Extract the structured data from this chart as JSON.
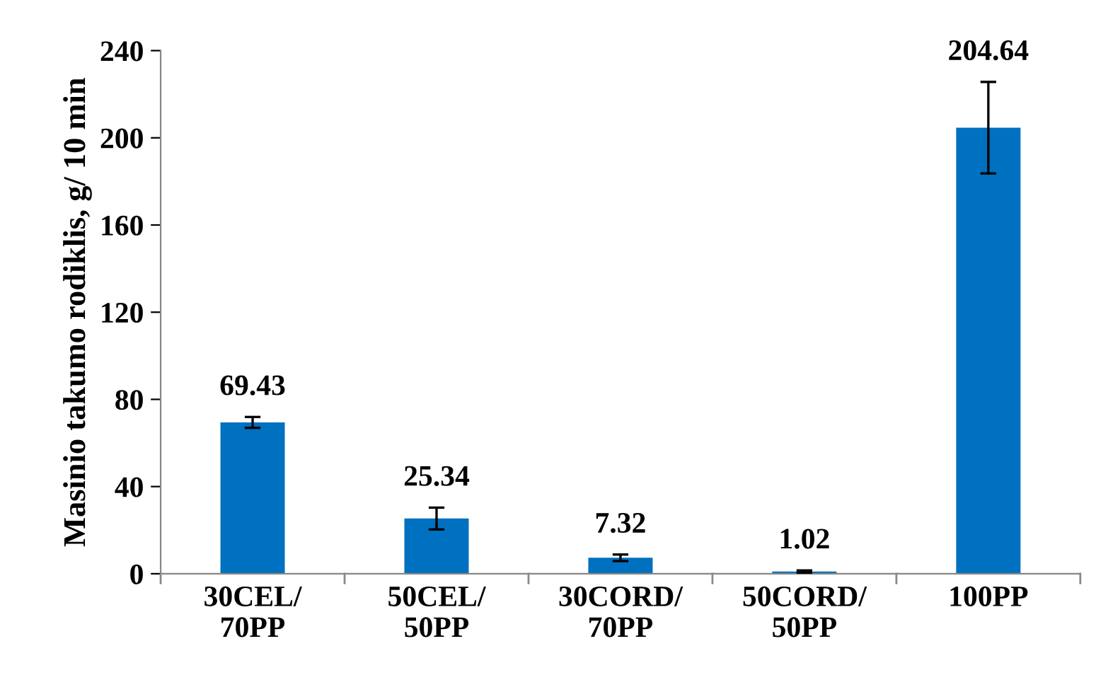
{
  "chart_data": {
    "type": "bar",
    "ylabel": "Masinio takumo rodiklis, g/ 10 min",
    "categories": [
      "30CEL/\n70PP",
      "50CEL/\n50PP",
      "30CORD/\n70PP",
      "50CORD/\n50PP",
      "100PP"
    ],
    "values": [
      69.43,
      25.34,
      7.32,
      1.02,
      204.64
    ],
    "errors": [
      2.5,
      5,
      1.5,
      0.5,
      21
    ],
    "color": "#0070c0",
    "ylim": [
      0,
      240
    ],
    "yticks": [
      0,
      40,
      80,
      120,
      160,
      200,
      240
    ],
    "data_labels": true,
    "grid": false
  }
}
